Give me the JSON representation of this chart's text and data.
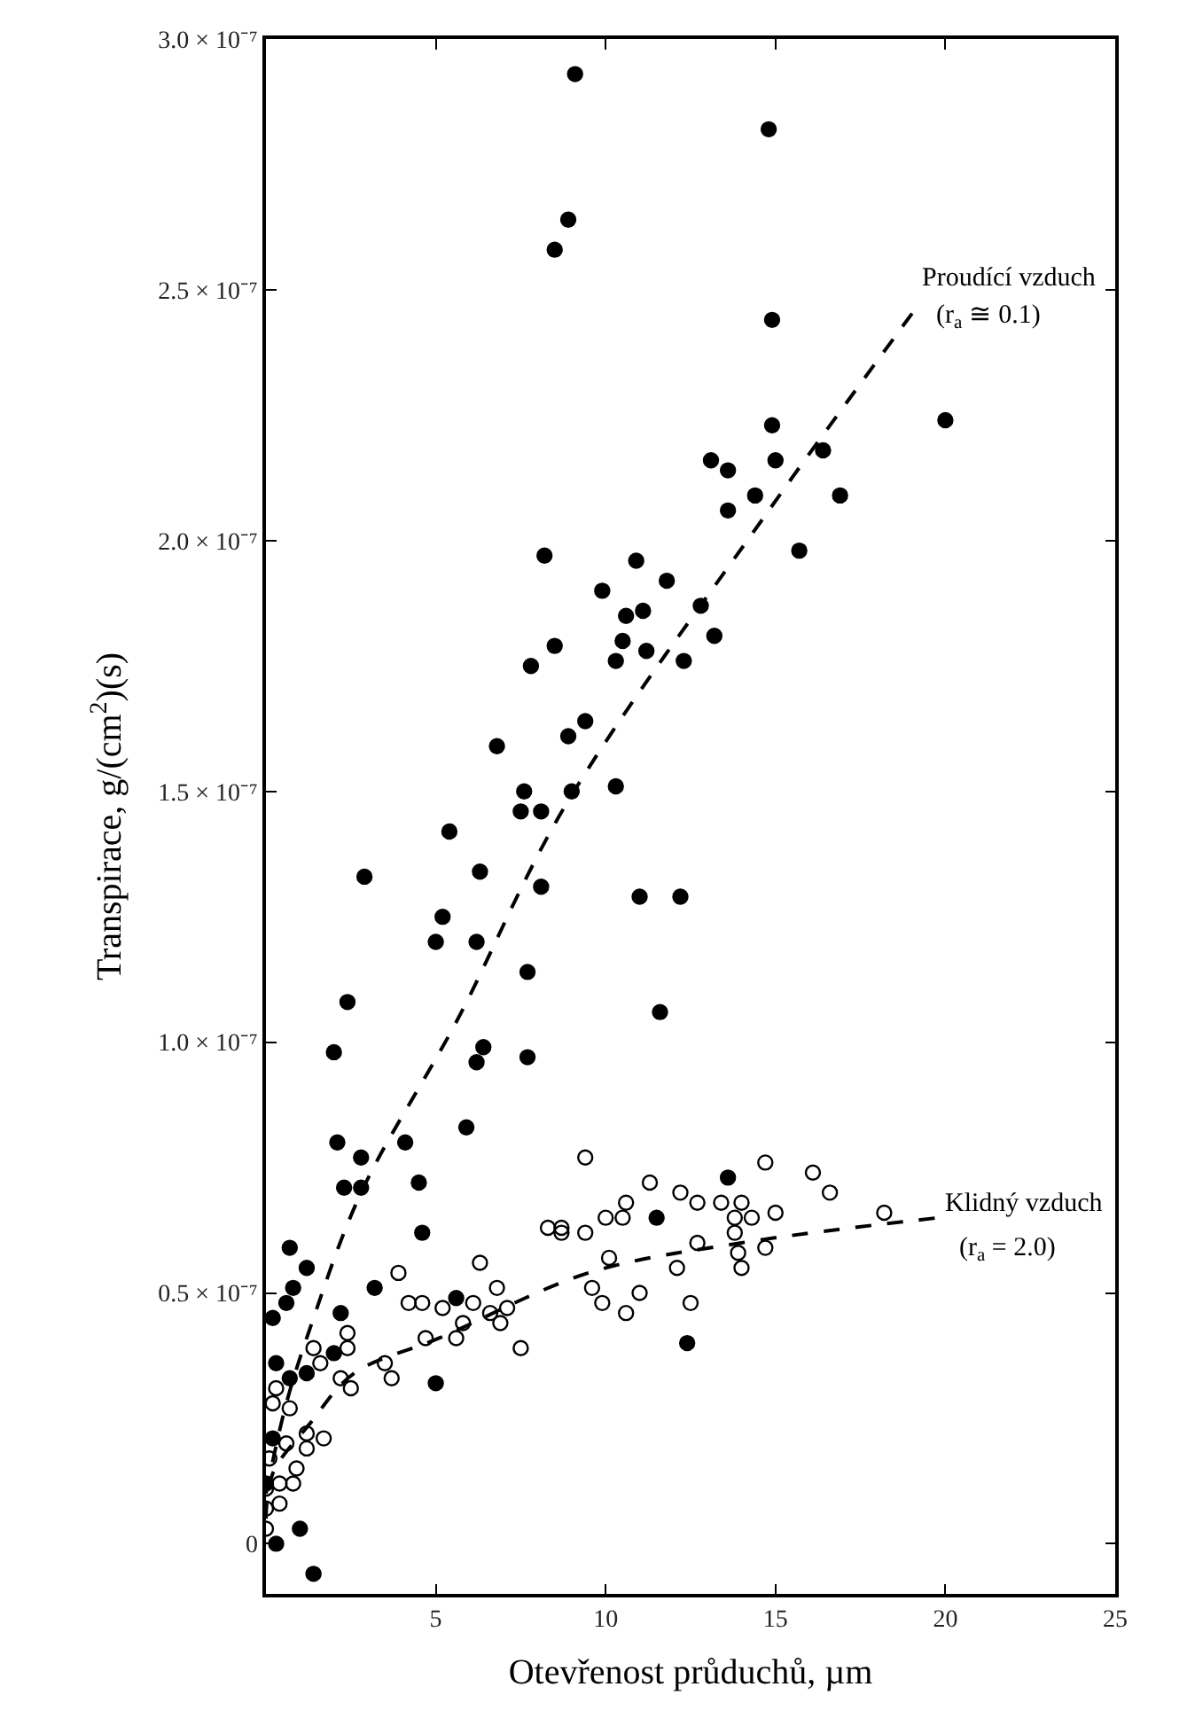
{
  "chart_data": {
    "type": "scatter",
    "xlabel": "Otevřenost průduchů, µm",
    "ylabel": "Transpirace, g/(cm$^{2}$)(s)",
    "xlim": [
      0,
      25
    ],
    "xticks": [
      5,
      10,
      15,
      20,
      25
    ],
    "ylim": [
      -1e-08,
      3e-07
    ],
    "yticks": [
      {
        "value": 0,
        "label": "0"
      },
      {
        "value": 5e-08,
        "label": "0.5 × 10⁻⁷"
      },
      {
        "value": 1e-07,
        "label": "1.0 × 10⁻⁷"
      },
      {
        "value": 1.5e-07,
        "label": "1.5 × 10⁻⁷"
      },
      {
        "value": 2e-07,
        "label": "2.0 × 10⁻⁷"
      },
      {
        "value": 2.5e-07,
        "label": "2.5 × 10⁻⁷"
      },
      {
        "value": 3e-07,
        "label": "3.0 × 10⁻⁷"
      }
    ],
    "series": [
      {
        "marker": "circle",
        "color": "#000000",
        "x": [
          9.1,
          14.8,
          8.9,
          8.5,
          14.9,
          20.0,
          14.9,
          13.1,
          13.6,
          15.0,
          16.4,
          14.4,
          16.9,
          13.6,
          15.7,
          8.2,
          10.9,
          11.8,
          9.9,
          10.6,
          11.1,
          12.8,
          10.5,
          11.2,
          13.2,
          8.5,
          7.8,
          10.3,
          12.3,
          9.4,
          8.9,
          6.8,
          7.6,
          9.0,
          10.3,
          7.5,
          8.1,
          5.4,
          2.9,
          6.3,
          8.1,
          11.0,
          12.2,
          5.2,
          5.0,
          6.2,
          7.7,
          2.4,
          11.6,
          2.0,
          6.4,
          7.7,
          6.2,
          2.1,
          2.8,
          2.3,
          2.8,
          4.1,
          5.9,
          4.5,
          4.6,
          13.6,
          11.5,
          0.7,
          1.2,
          0.8,
          0.6,
          0.2,
          2.2,
          3.2,
          5.6,
          0.3,
          2.0,
          1.2,
          0.7,
          5.0,
          12.4,
          0.2,
          0.0,
          1.0,
          0.3,
          1.4
        ],
        "values": [
          2.93e-07,
          2.82e-07,
          2.64e-07,
          2.58e-07,
          2.44e-07,
          2.24e-07,
          2.23e-07,
          2.16e-07,
          2.14e-07,
          2.16e-07,
          2.18e-07,
          2.09e-07,
          2.09e-07,
          2.06e-07,
          1.98e-07,
          1.97e-07,
          1.96e-07,
          1.92e-07,
          1.9e-07,
          1.85e-07,
          1.86e-07,
          1.87e-07,
          1.8e-07,
          1.78e-07,
          1.81e-07,
          1.79e-07,
          1.75e-07,
          1.76e-07,
          1.76e-07,
          1.64e-07,
          1.61e-07,
          1.59e-07,
          1.5e-07,
          1.5e-07,
          1.51e-07,
          1.46e-07,
          1.46e-07,
          1.42e-07,
          1.33e-07,
          1.34e-07,
          1.31e-07,
          1.29e-07,
          1.29e-07,
          1.25e-07,
          1.2e-07,
          1.2e-07,
          1.14e-07,
          1.08e-07,
          1.06e-07,
          9.8e-08,
          9.9e-08,
          9.7e-08,
          9.6e-08,
          8e-08,
          7.7e-08,
          7.1e-08,
          7.1e-08,
          8e-08,
          8.3e-08,
          7.2e-08,
          6.2e-08,
          7.3e-08,
          6.5e-08,
          5.9e-08,
          5.5e-08,
          5.1e-08,
          4.8e-08,
          4.5e-08,
          4.6e-08,
          5.1e-08,
          4.9e-08,
          3.6e-08,
          3.8e-08,
          3.4e-08,
          3.3e-08,
          3.2e-08,
          4e-08,
          2.1e-08,
          1.2e-08,
          3e-09,
          0.0,
          -6e-09
        ]
      },
      {
        "marker": "circle-open",
        "color": "#000000",
        "x": [
          9.4,
          14.7,
          16.1,
          11.3,
          16.6,
          10.6,
          12.2,
          12.7,
          13.4,
          14.0,
          10.5,
          10.0,
          15.0,
          13.8,
          14.3,
          8.7,
          8.3,
          8.7,
          9.4,
          18.2,
          13.8,
          12.7,
          14.7,
          13.9,
          10.1,
          14.0,
          12.1,
          6.3,
          3.9,
          9.6,
          9.9,
          11.0,
          10.6,
          12.5,
          6.8,
          4.2,
          4.6,
          5.2,
          6.1,
          6.6,
          7.1,
          6.9,
          5.8,
          4.7,
          5.6,
          7.5,
          2.4,
          2.4,
          1.4,
          1.6,
          3.5,
          3.7,
          2.2,
          2.5,
          0.3,
          0.2,
          0.7,
          1.2,
          1.7,
          1.2,
          0.6,
          0.1,
          0.9,
          0.4,
          0.8,
          0.4,
          0.0,
          0.0,
          0.0
        ],
        "values": [
          7.7e-08,
          7.6e-08,
          7.4e-08,
          7.2e-08,
          7e-08,
          6.8e-08,
          7e-08,
          6.8e-08,
          6.8e-08,
          6.8e-08,
          6.5e-08,
          6.5e-08,
          6.6e-08,
          6.5e-08,
          6.5e-08,
          6.3e-08,
          6.3e-08,
          6.2e-08,
          6.2e-08,
          6.6e-08,
          6.2e-08,
          6e-08,
          5.9e-08,
          5.8e-08,
          5.7e-08,
          5.5e-08,
          5.5e-08,
          5.6e-08,
          5.4e-08,
          5.1e-08,
          4.8e-08,
          5e-08,
          4.6e-08,
          4.8e-08,
          5.1e-08,
          4.8e-08,
          4.8e-08,
          4.7e-08,
          4.8e-08,
          4.6e-08,
          4.7e-08,
          4.4e-08,
          4.4e-08,
          4.1e-08,
          4.1e-08,
          3.9e-08,
          4.2e-08,
          3.9e-08,
          3.9e-08,
          3.6e-08,
          3.6e-08,
          3.3e-08,
          3.3e-08,
          3.1e-08,
          3.1e-08,
          2.8e-08,
          2.7e-08,
          2.2e-08,
          2.1e-08,
          1.9e-08,
          2e-08,
          1.7e-08,
          1.5e-08,
          1.2e-08,
          1.2e-08,
          8e-09,
          1.1e-08,
          7e-09,
          3e-09
        ]
      },
      {
        "type": "line",
        "line_style": "dashed",
        "marker": "none",
        "color": "#000000",
        "x": [
          0,
          0.6,
          1.3,
          2.8,
          5.6,
          8.8,
          14.8,
          19.1
        ],
        "values": [
          1e-08,
          2.8e-08,
          4.3e-08,
          7e-08,
          1.04e-07,
          1.47e-07,
          2.06e-07,
          2.46e-07
        ]
      },
      {
        "type": "line",
        "line_style": "dashed",
        "marker": "none",
        "color": "#000000",
        "x": [
          0,
          0.2,
          1.3,
          2.6,
          5.1,
          9.5,
          14.0,
          19.8
        ],
        "values": [
          5e-09,
          1.4e-08,
          2.4e-08,
          3.4e-08,
          4.1e-08,
          5.4e-08,
          6e-08,
          6.5e-08
        ]
      }
    ],
    "annotations": [
      "Proudící vzduch",
      "(r$_{a}$ ≅ 0.1)",
      "Klidný vzduch",
      "(r$_{a}$ = 2.0)"
    ]
  }
}
